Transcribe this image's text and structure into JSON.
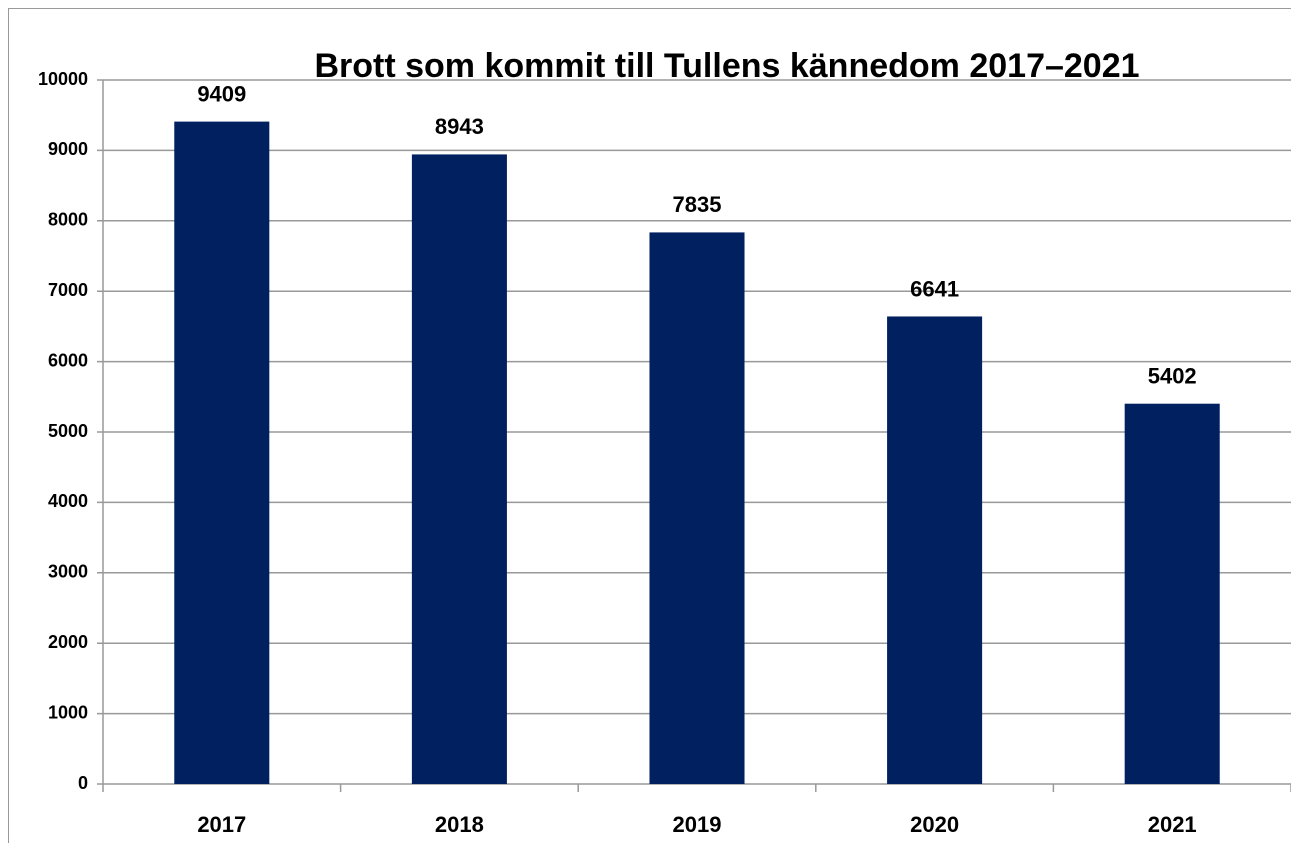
{
  "chart_data": {
    "type": "bar",
    "title": "Brott som kommit till Tullens kännedom 2017–2021",
    "categories": [
      "2017",
      "2018",
      "2019",
      "2020",
      "2021"
    ],
    "values": [
      9409,
      8943,
      7835,
      6641,
      5402
    ],
    "color": "#002060",
    "ylim": [
      0,
      10000
    ],
    "yticks": [
      0,
      1000,
      2000,
      3000,
      4000,
      5000,
      6000,
      7000,
      8000,
      9000,
      10000
    ],
    "grid": true
  }
}
